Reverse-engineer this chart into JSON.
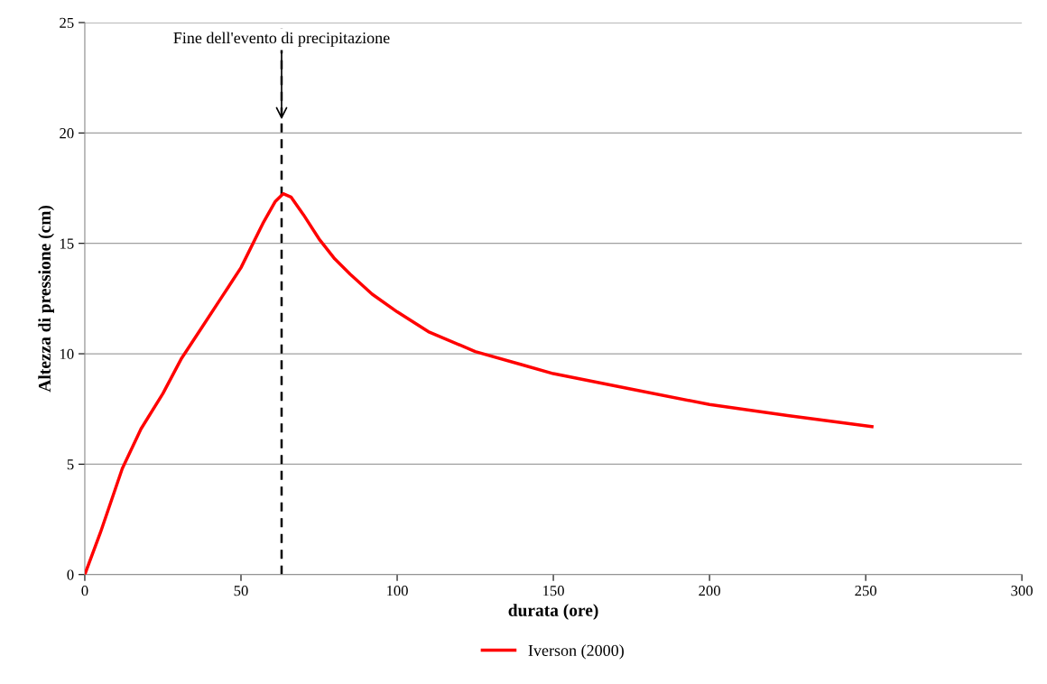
{
  "chart_data": {
    "type": "line",
    "xlabel": "durata (ore)",
    "ylabel": "Altezza di pressione (cm)",
    "xlim": [
      0,
      300
    ],
    "xticks": [
      0,
      50,
      100,
      150,
      200,
      250,
      300
    ],
    "ylim": [
      0,
      25
    ],
    "yticks": [
      0,
      5,
      10,
      15,
      20,
      25
    ],
    "grid": "y",
    "legend": "bottom",
    "marker": "none",
    "line_style": "solid",
    "series": [
      {
        "name": "Iverson (2000)",
        "color": "#ff0000",
        "x": [
          0,
          5,
          12,
          18,
          25,
          31,
          37.5,
          44,
          50,
          57,
          61,
          63.5,
          66,
          70,
          75,
          80,
          85,
          92,
          100,
          110,
          125,
          140,
          150,
          175,
          200,
          225,
          252
        ],
        "values": [
          0,
          1.9,
          4.8,
          6.6,
          8.2,
          9.8,
          11.2,
          12.6,
          13.9,
          15.9,
          16.9,
          17.25,
          17.1,
          16.3,
          15.2,
          14.3,
          13.6,
          12.7,
          11.9,
          11.0,
          10.1,
          9.5,
          9.1,
          8.4,
          7.7,
          7.2,
          6.7
        ]
      }
    ],
    "ref_lines": [
      {
        "axis": "x",
        "value": 63,
        "color": "#000000",
        "line_style": "dashed"
      }
    ],
    "annotations": [
      {
        "text": "Fine dell'evento di precipitazione",
        "x": 63,
        "y": 20.5
      }
    ]
  }
}
